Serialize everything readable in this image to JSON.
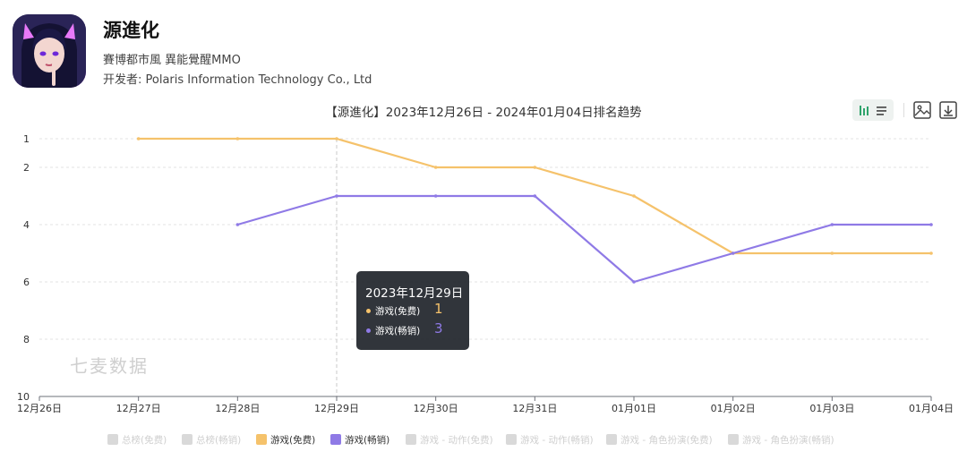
{
  "app": {
    "title": "源進化",
    "tags": "賽博都市風 異能覺醒MMO",
    "developer": "开发者: Polaris Information Technology Co., Ltd",
    "icon": "app-avatar-icon"
  },
  "toolbar": {
    "view_icon": "bar-list-toggle-icon",
    "image_icon": "image-export-icon",
    "download_icon": "download-icon"
  },
  "watermark": "七麦数据",
  "tooltip": {
    "date": "2023年12月29日",
    "rows": [
      {
        "name": "游戏(免费)",
        "value": "1",
        "color": "#f5c26b"
      },
      {
        "name": "游戏(畅销)",
        "value": "3",
        "color": "#8f7ae6"
      }
    ]
  },
  "legend": [
    {
      "label": "总榜(免费)",
      "active": false,
      "color": "#d9d9d9"
    },
    {
      "label": "总榜(畅销)",
      "active": false,
      "color": "#d9d9d9"
    },
    {
      "label": "游戏(免费)",
      "active": true,
      "color": "#f5c26b"
    },
    {
      "label": "游戏(畅销)",
      "active": true,
      "color": "#8f7ae6"
    },
    {
      "label": "游戏 - 动作(免费)",
      "active": false,
      "color": "#d9d9d9"
    },
    {
      "label": "游戏 - 动作(畅销)",
      "active": false,
      "color": "#d9d9d9"
    },
    {
      "label": "游戏 - 角色扮演(免费)",
      "active": false,
      "color": "#d9d9d9"
    },
    {
      "label": "游戏 - 角色扮演(畅销)",
      "active": false,
      "color": "#d9d9d9"
    }
  ],
  "chart_data": {
    "type": "line",
    "title": "【源進化】2023年12月26日 - 2024年01月04日排名趋势",
    "x": [
      "12月26日",
      "12月27日",
      "12月28日",
      "12月29日",
      "12月30日",
      "12月31日",
      "01月01日",
      "01月02日",
      "01月03日",
      "01月04日"
    ],
    "y_ticks": [
      1,
      2,
      4,
      6,
      8,
      10
    ],
    "ylim": [
      1,
      10
    ],
    "y_inverted": true,
    "grid": true,
    "legend_position": "bottom",
    "series": [
      {
        "name": "游戏(免费)",
        "color": "#f5c26b",
        "values": [
          null,
          1,
          1,
          1,
          2,
          2,
          3,
          5,
          5,
          5
        ]
      },
      {
        "name": "游戏(畅销)",
        "color": "#8f7ae6",
        "values": [
          null,
          null,
          4,
          3,
          3,
          3,
          6,
          5,
          4,
          4
        ]
      }
    ],
    "highlight_x": "12月29日"
  }
}
